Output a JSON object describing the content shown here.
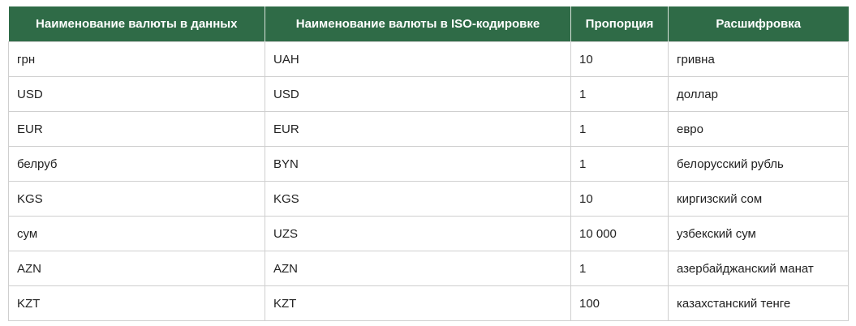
{
  "table": {
    "headers": [
      "Наименование валюты в данных",
      "Наименование валюты в ISO-кодировке",
      "Пропорция",
      "Расшифровка"
    ],
    "rows": [
      [
        "грн",
        "UAH",
        "10",
        "гривна"
      ],
      [
        "USD",
        "USD",
        "1",
        "доллар"
      ],
      [
        "EUR",
        "EUR",
        "1",
        "евро"
      ],
      [
        "белруб",
        "BYN",
        "1",
        "белорусский рубль"
      ],
      [
        "KGS",
        "KGS",
        "10",
        "киргизский сом"
      ],
      [
        "сум",
        "UZS",
        "10 000",
        "узбекский сум"
      ],
      [
        "AZN",
        "AZN",
        "1",
        "азербайджанский манат"
      ],
      [
        "KZT",
        "KZT",
        "100",
        "казахстанский тенге"
      ]
    ]
  },
  "colors": {
    "header_bg": "#2f6b47",
    "header_text": "#ffffff",
    "border": "#cfcfcf"
  }
}
